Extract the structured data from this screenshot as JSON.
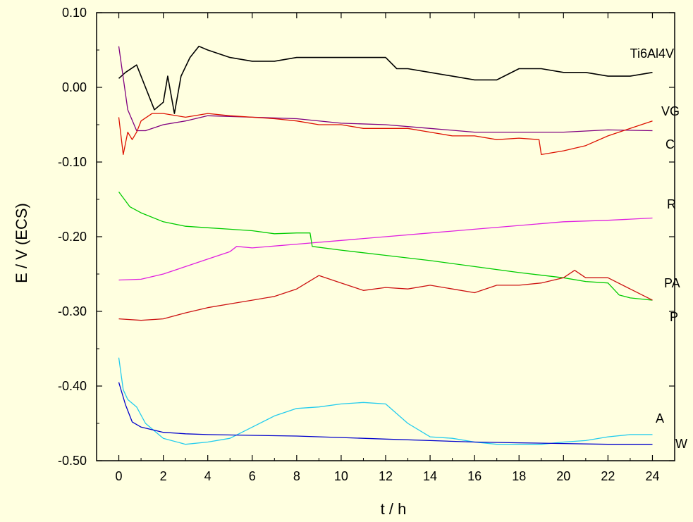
{
  "chart_data": {
    "type": "line",
    "xlabel": "t / h",
    "ylabel": "E / V (ECS)",
    "xlim": [
      -1,
      25
    ],
    "ylim": [
      -0.5,
      0.1
    ],
    "x_ticks": [
      0,
      2,
      4,
      6,
      8,
      10,
      12,
      14,
      16,
      18,
      20,
      22,
      24
    ],
    "y_ticks": [
      -0.5,
      -0.4,
      -0.3,
      -0.2,
      -0.1,
      0.0,
      0.1
    ],
    "x_tick_labels": [
      "0",
      "2",
      "4",
      "6",
      "8",
      "10",
      "12",
      "14",
      "16",
      "18",
      "20",
      "22",
      "24"
    ],
    "y_tick_labels": [
      "-0.50",
      "-0.40",
      "-0.30",
      "-0.20",
      "-0.10",
      "0.00",
      "0.10"
    ],
    "grid": false,
    "series": [
      {
        "name": "Ti6Al4V",
        "color": "#000000",
        "x": [
          0,
          0.3,
          0.8,
          1.2,
          1.6,
          2.0,
          2.2,
          2.5,
          2.8,
          3.2,
          3.6,
          4.0,
          5,
          6,
          7,
          8,
          9,
          10,
          11,
          12,
          12.5,
          13,
          14,
          15,
          16,
          17,
          18,
          19,
          20,
          21,
          22,
          23,
          24
        ],
        "y": [
          0.012,
          0.02,
          0.03,
          0.0,
          -0.03,
          -0.02,
          0.015,
          -0.035,
          0.015,
          0.04,
          0.055,
          0.05,
          0.04,
          0.035,
          0.035,
          0.04,
          0.04,
          0.04,
          0.04,
          0.04,
          0.025,
          0.025,
          0.02,
          0.015,
          0.01,
          0.01,
          0.025,
          0.025,
          0.02,
          0.02,
          0.015,
          0.015,
          0.02
        ]
      },
      {
        "name": "VG",
        "color": "#800080",
        "x": [
          0,
          0.4,
          0.8,
          1.2,
          2,
          3,
          4,
          6,
          8,
          10,
          12,
          14,
          16,
          18,
          20,
          22,
          24
        ],
        "y": [
          0.055,
          -0.03,
          -0.058,
          -0.058,
          -0.05,
          -0.045,
          -0.038,
          -0.04,
          -0.042,
          -0.048,
          -0.05,
          -0.055,
          -0.06,
          -0.06,
          -0.06,
          -0.057,
          -0.058
        ]
      },
      {
        "name": "C",
        "color": "#dd1100",
        "x": [
          0,
          0.2,
          0.4,
          0.6,
          0.8,
          1.0,
          1.5,
          2,
          3,
          4,
          5,
          6,
          7,
          8,
          9,
          10,
          11,
          12,
          13,
          14,
          15,
          16,
          17,
          18,
          18.9,
          19,
          20,
          21,
          22,
          23,
          24
        ],
        "y": [
          -0.04,
          -0.09,
          -0.06,
          -0.07,
          -0.06,
          -0.045,
          -0.035,
          -0.035,
          -0.04,
          -0.035,
          -0.038,
          -0.04,
          -0.042,
          -0.045,
          -0.05,
          -0.05,
          -0.055,
          -0.055,
          -0.055,
          -0.06,
          -0.065,
          -0.065,
          -0.07,
          -0.068,
          -0.07,
          -0.09,
          -0.085,
          -0.078,
          -0.065,
          -0.055,
          -0.045
        ]
      },
      {
        "name": "R",
        "color": "#e020e0",
        "x": [
          0,
          1,
          2,
          3,
          4,
          5,
          5.3,
          6,
          8,
          10,
          12,
          14,
          16,
          18,
          20,
          22,
          24
        ],
        "y": [
          -0.258,
          -0.257,
          -0.25,
          -0.24,
          -0.23,
          -0.22,
          -0.213,
          -0.215,
          -0.21,
          -0.205,
          -0.2,
          -0.195,
          -0.19,
          -0.185,
          -0.18,
          -0.178,
          -0.175
        ]
      },
      {
        "name": "PA",
        "color": "#00cc00",
        "x": [
          0,
          0.5,
          1,
          2,
          3,
          4,
          5,
          6,
          7,
          8,
          8.6,
          8.7,
          10,
          12,
          14,
          16,
          18,
          20,
          21,
          22,
          22.5,
          23,
          24
        ],
        "y": [
          -0.14,
          -0.16,
          -0.168,
          -0.18,
          -0.186,
          -0.188,
          -0.19,
          -0.192,
          -0.196,
          -0.195,
          -0.195,
          -0.213,
          -0.218,
          -0.225,
          -0.232,
          -0.24,
          -0.248,
          -0.255,
          -0.26,
          -0.262,
          -0.278,
          -0.282,
          -0.285
        ]
      },
      {
        "name": "P",
        "color": "#cc1111",
        "x": [
          0,
          1,
          2,
          3,
          4,
          5,
          6,
          7,
          8,
          9,
          10,
          11,
          12,
          13,
          14,
          15,
          16,
          17,
          18,
          19,
          20,
          20.5,
          21,
          22,
          23,
          24
        ],
        "y": [
          -0.31,
          -0.312,
          -0.31,
          -0.302,
          -0.295,
          -0.29,
          -0.285,
          -0.28,
          -0.27,
          -0.252,
          -0.262,
          -0.272,
          -0.268,
          -0.27,
          -0.265,
          -0.27,
          -0.275,
          -0.265,
          -0.265,
          -0.262,
          -0.255,
          -0.245,
          -0.255,
          -0.255,
          -0.27,
          -0.285
        ]
      },
      {
        "name": "A",
        "color": "#22ccee",
        "x": [
          0,
          0.2,
          0.4,
          0.8,
          1.2,
          2,
          3,
          4,
          5,
          6,
          7,
          8,
          9,
          10,
          11,
          12,
          13,
          14,
          15,
          16,
          17,
          18,
          19,
          20,
          21,
          22,
          23,
          24
        ],
        "y": [
          -0.362,
          -0.405,
          -0.418,
          -0.428,
          -0.45,
          -0.47,
          -0.478,
          -0.475,
          -0.47,
          -0.455,
          -0.44,
          -0.43,
          -0.428,
          -0.424,
          -0.422,
          -0.424,
          -0.45,
          -0.468,
          -0.47,
          -0.475,
          -0.478,
          -0.478,
          -0.478,
          -0.475,
          -0.473,
          -0.468,
          -0.465,
          -0.465
        ]
      },
      {
        "name": "W",
        "color": "#0000cc",
        "x": [
          0,
          0.3,
          0.6,
          1,
          2,
          3,
          4,
          6,
          8,
          10,
          12,
          14,
          16,
          18,
          20,
          22,
          24
        ],
        "y": [
          -0.395,
          -0.425,
          -0.448,
          -0.455,
          -0.462,
          -0.464,
          -0.465,
          -0.466,
          -0.467,
          -0.469,
          -0.471,
          -0.473,
          -0.475,
          -0.476,
          -0.477,
          -0.478,
          -0.478
        ]
      }
    ]
  }
}
